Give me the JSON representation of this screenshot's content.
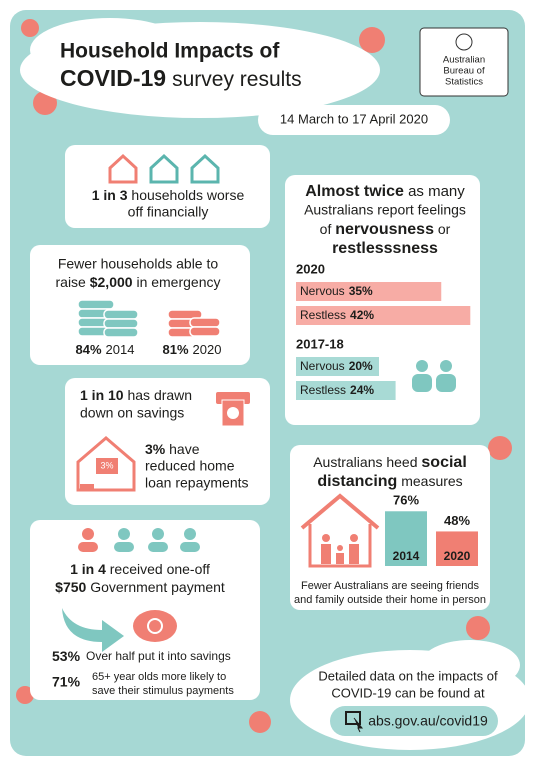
{
  "header": {
    "title_line1": "Household Impacts of",
    "title_bold": "COVID-19",
    "title_rest": "survey results",
    "org": [
      "Australian",
      "Bureau of",
      "Statistics"
    ],
    "date_range": "14 March to 17 April 2020"
  },
  "worse_off": {
    "bold": "1 in 3",
    "line1_rest": " households worse",
    "line2": "off financially"
  },
  "emergency": {
    "line1": "Fewer households able to",
    "line2_pre": "raise ",
    "line2_bold": "$2,000",
    "line2_post": " in emergency",
    "stats": [
      {
        "value": "84%",
        "year": "2014"
      },
      {
        "value": "81%",
        "year": "2020"
      }
    ]
  },
  "savings": {
    "bold": "1 in 10",
    "line1_rest": " has drawn",
    "line2": "down on savings",
    "loan_bold": "3%",
    "loan_line1_rest": " have",
    "loan_line2": "reduced home",
    "loan_line3": "loan repayments",
    "icon_label": "3%"
  },
  "payment": {
    "bold1": "1 in 4",
    "line1_rest": " received one-off",
    "bold2": "$750",
    "line2_rest": " Government payment",
    "stat1_value": "53%",
    "stat1_text": "Over half put it into savings",
    "stat2_value": "71%",
    "stat2_line1": "65+ year olds more likely to",
    "stat2_line2": "save their stimulus payments"
  },
  "nervousness": {
    "bold1": "Almost twice",
    "line1_rest": " as many",
    "line2": "Australians report feelings",
    "line3_pre": "of ",
    "line3_bold": "nervousness",
    "line3_post": " or",
    "line4_bold": "restlesssness",
    "groups": [
      {
        "year": "2020",
        "color": "#f7aca5",
        "bars": [
          {
            "name": "Nervous",
            "value": 35,
            "label": "35%"
          },
          {
            "name": "Restless",
            "value": 42,
            "label": "42%"
          }
        ]
      },
      {
        "year": "2017-18",
        "color": "#a8dad5",
        "bars": [
          {
            "name": "Nervous",
            "value": 20,
            "label": "20%"
          },
          {
            "name": "Restless",
            "value": 24,
            "label": "24%"
          }
        ]
      }
    ]
  },
  "social": {
    "line1_pre": "Australians heed ",
    "line1_bold": "social",
    "line2_bold": "distancing",
    "line2_rest": " measures",
    "bars": [
      {
        "year": "2014",
        "value": 76,
        "label": "76%",
        "color": "#7fc7c0"
      },
      {
        "year": "2020",
        "value": 48,
        "label": "48%",
        "color": "#f07f73"
      }
    ],
    "note_line1": "Fewer Australians are seeing friends",
    "note_line2": "and family outside their home in person"
  },
  "footer": {
    "line1": "Detailed data on the impacts of",
    "line2": "COVID-19 can be found at",
    "url": "abs.gov.au/covid19"
  }
}
